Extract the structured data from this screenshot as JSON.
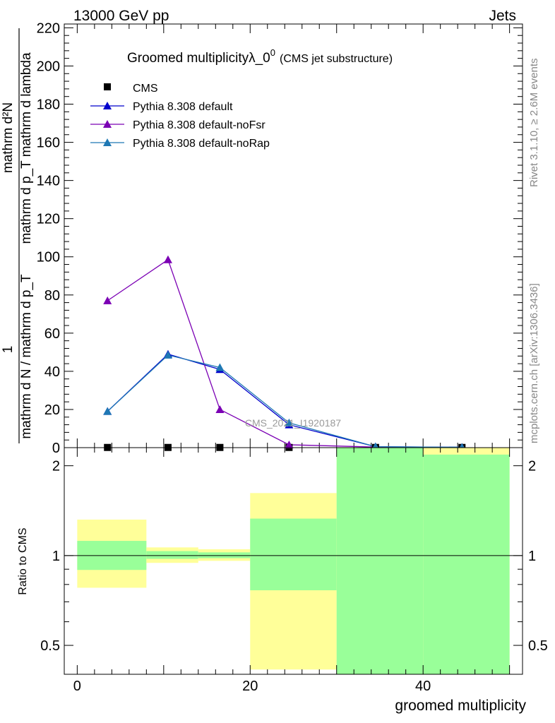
{
  "header": {
    "left": "13000 GeV pp",
    "right": "Jets"
  },
  "side_texts": {
    "rivet": "Rivet 3.1.10, ≥ 2.6M events",
    "mcplots": "mcplots.cern.ch [arXiv:1306.3436]"
  },
  "watermark": "CMS_2021_I1920187",
  "chart_data": [
    {
      "type": "line",
      "title": {
        "main": "Groomed multiplicityλ_0",
        "sup": "0",
        "suffix": "(CMS jet substructure)"
      },
      "ylabel": {
        "numerator": "mathrm d²N",
        "denominator": "mathrm d p_T mathrm d lambda",
        "prefix_num": "1",
        "prefix_den": "mathrm d N / mathrm d p_T"
      },
      "ylim": [
        0,
        222
      ],
      "yticks": [
        0,
        20,
        40,
        60,
        80,
        100,
        120,
        140,
        160,
        180,
        200,
        220
      ],
      "xlim": [
        -1.5,
        51.5
      ],
      "bins": [
        [
          0,
          7
        ],
        [
          7,
          13
        ],
        [
          13,
          19
        ],
        [
          19,
          30
        ],
        [
          30,
          40
        ],
        [
          40,
          50
        ]
      ],
      "x": [
        3.5,
        10.5,
        16.5,
        24.5,
        34.5,
        44.5
      ],
      "legend_position": "top-left",
      "series": [
        {
          "name": "CMS",
          "marker": "square",
          "color": "#000000",
          "values": [
            0.1,
            0.1,
            0.1,
            0.1,
            0.1,
            0.1
          ]
        },
        {
          "name": "Pythia 8.308 default",
          "marker": "triangle",
          "color": "#0000cc",
          "values": [
            19,
            49,
            41,
            12,
            0.5,
            0.2
          ]
        },
        {
          "name": "Pythia 8.308 default-noFsr",
          "marker": "triangle",
          "color": "#7b00b4",
          "values": [
            77,
            98.5,
            20,
            1.5,
            0.3,
            0.1
          ]
        },
        {
          "name": "Pythia 8.308 default-noRap",
          "marker": "triangle",
          "color": "#1f78b4",
          "values": [
            19,
            48.5,
            42,
            13,
            0.5,
            0.2
          ]
        }
      ]
    },
    {
      "type": "area",
      "ylabel": "Ratio to CMS",
      "xlabel": "groomed multiplicity",
      "ylim": [
        0.4,
        2.3
      ],
      "log_y": true,
      "yticks": [
        0.5,
        1,
        2
      ],
      "xticks": [
        0,
        20,
        40
      ],
      "xlim": [
        -1.5,
        51.5
      ],
      "reference": 1,
      "bands": [
        {
          "x0": 0,
          "x1": 8,
          "yellow": [
            0.78,
            1.32
          ],
          "green": [
            0.895,
            1.12
          ]
        },
        {
          "x0": 8,
          "x1": 14,
          "yellow": [
            0.945,
            1.065
          ],
          "green": [
            0.975,
            1.035
          ]
        },
        {
          "x0": 14,
          "x1": 20,
          "yellow": [
            0.96,
            1.05
          ],
          "green": [
            0.98,
            1.025
          ]
        },
        {
          "x0": 20,
          "x1": 30,
          "yellow": [
            0.415,
            1.62
          ],
          "green": [
            0.765,
            1.33
          ]
        },
        {
          "x0": 30,
          "x1": 40,
          "yellow": [
            0.4,
            2.3
          ],
          "green": [
            0.4,
            2.3
          ]
        },
        {
          "x0": 40,
          "x1": 50,
          "yellow": [
            0.4,
            2.3
          ],
          "green": [
            0.4,
            2.18
          ]
        }
      ],
      "colors": {
        "yellow": "#ffff99",
        "green": "#99ff99"
      }
    }
  ]
}
